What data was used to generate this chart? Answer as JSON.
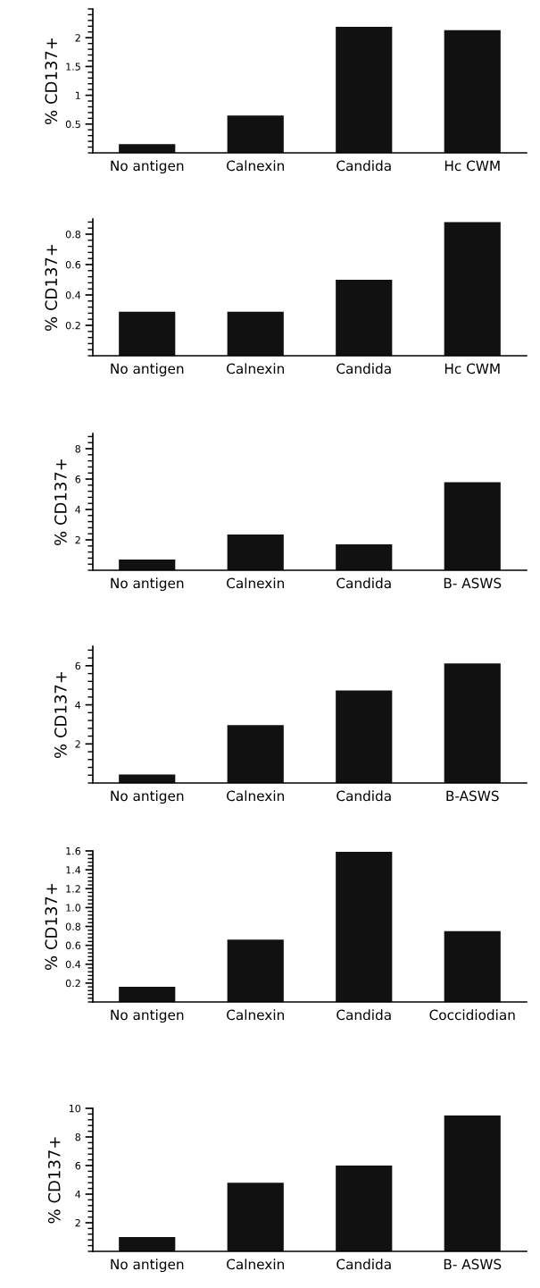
{
  "chart_data": [
    {
      "type": "bar",
      "ylabel": "% CD137+",
      "categories": [
        "No antigen",
        "Calnexin",
        "Candida",
        "Hc CWM"
      ],
      "values": [
        0.15,
        0.65,
        2.19,
        2.13
      ],
      "color": "#111111",
      "ylim": [
        0,
        2.5
      ],
      "yticks": [
        0.5,
        1,
        1.5,
        2
      ],
      "grid": false,
      "legend": false
    },
    {
      "type": "bar",
      "ylabel": "% CD137+",
      "categories": [
        "No antigen",
        "Calnexin",
        "Candida",
        "Hc CWM"
      ],
      "values": [
        0.29,
        0.29,
        0.5,
        0.88
      ],
      "color": "#111111",
      "ylim": [
        0,
        0.9
      ],
      "yticks": [
        0.2,
        0.4,
        0.6,
        0.8
      ],
      "grid": false,
      "legend": false
    },
    {
      "type": "bar",
      "ylabel": "% CD137+",
      "categories": [
        "No antigen",
        "Calnexin",
        "Candida",
        "B- ASWS"
      ],
      "values": [
        0.7,
        2.36,
        1.7,
        5.8
      ],
      "color": "#111111",
      "ylim": [
        0,
        9
      ],
      "yticks": [
        2,
        4,
        6,
        8
      ],
      "grid": false,
      "legend": false
    },
    {
      "type": "bar",
      "ylabel": "% CD137+",
      "categories": [
        "No antigen",
        "Calnexin",
        "Candida",
        "B-ASWS"
      ],
      "values": [
        0.44,
        2.96,
        4.73,
        6.12
      ],
      "color": "#111111",
      "ylim": [
        0,
        7
      ],
      "yticks": [
        2,
        4,
        6
      ],
      "grid": false,
      "legend": false
    },
    {
      "type": "bar",
      "ylabel": "% CD137+",
      "categories": [
        "No antigen",
        "Calnexin",
        "Candida",
        "Coccidiodian"
      ],
      "values": [
        0.16,
        0.66,
        1.59,
        0.75
      ],
      "color": "#111111",
      "ylim": [
        0,
        1.6
      ],
      "yticks": [
        0.2,
        0.4,
        0.6,
        0.8,
        {
          "value": 1,
          "label": "1.0"
        },
        1.2,
        1.4,
        1.6
      ],
      "grid": false,
      "legend": false
    },
    {
      "type": "bar",
      "ylabel": "% CD137+",
      "categories": [
        "No antigen",
        "Calnexin",
        "Candida",
        "B- ASWS"
      ],
      "values": [
        1.0,
        4.8,
        6.0,
        9.5
      ],
      "color": "#111111",
      "ylim": [
        0,
        10
      ],
      "yticks": [
        2,
        4,
        6,
        8,
        10
      ],
      "grid": false,
      "legend": false
    }
  ]
}
